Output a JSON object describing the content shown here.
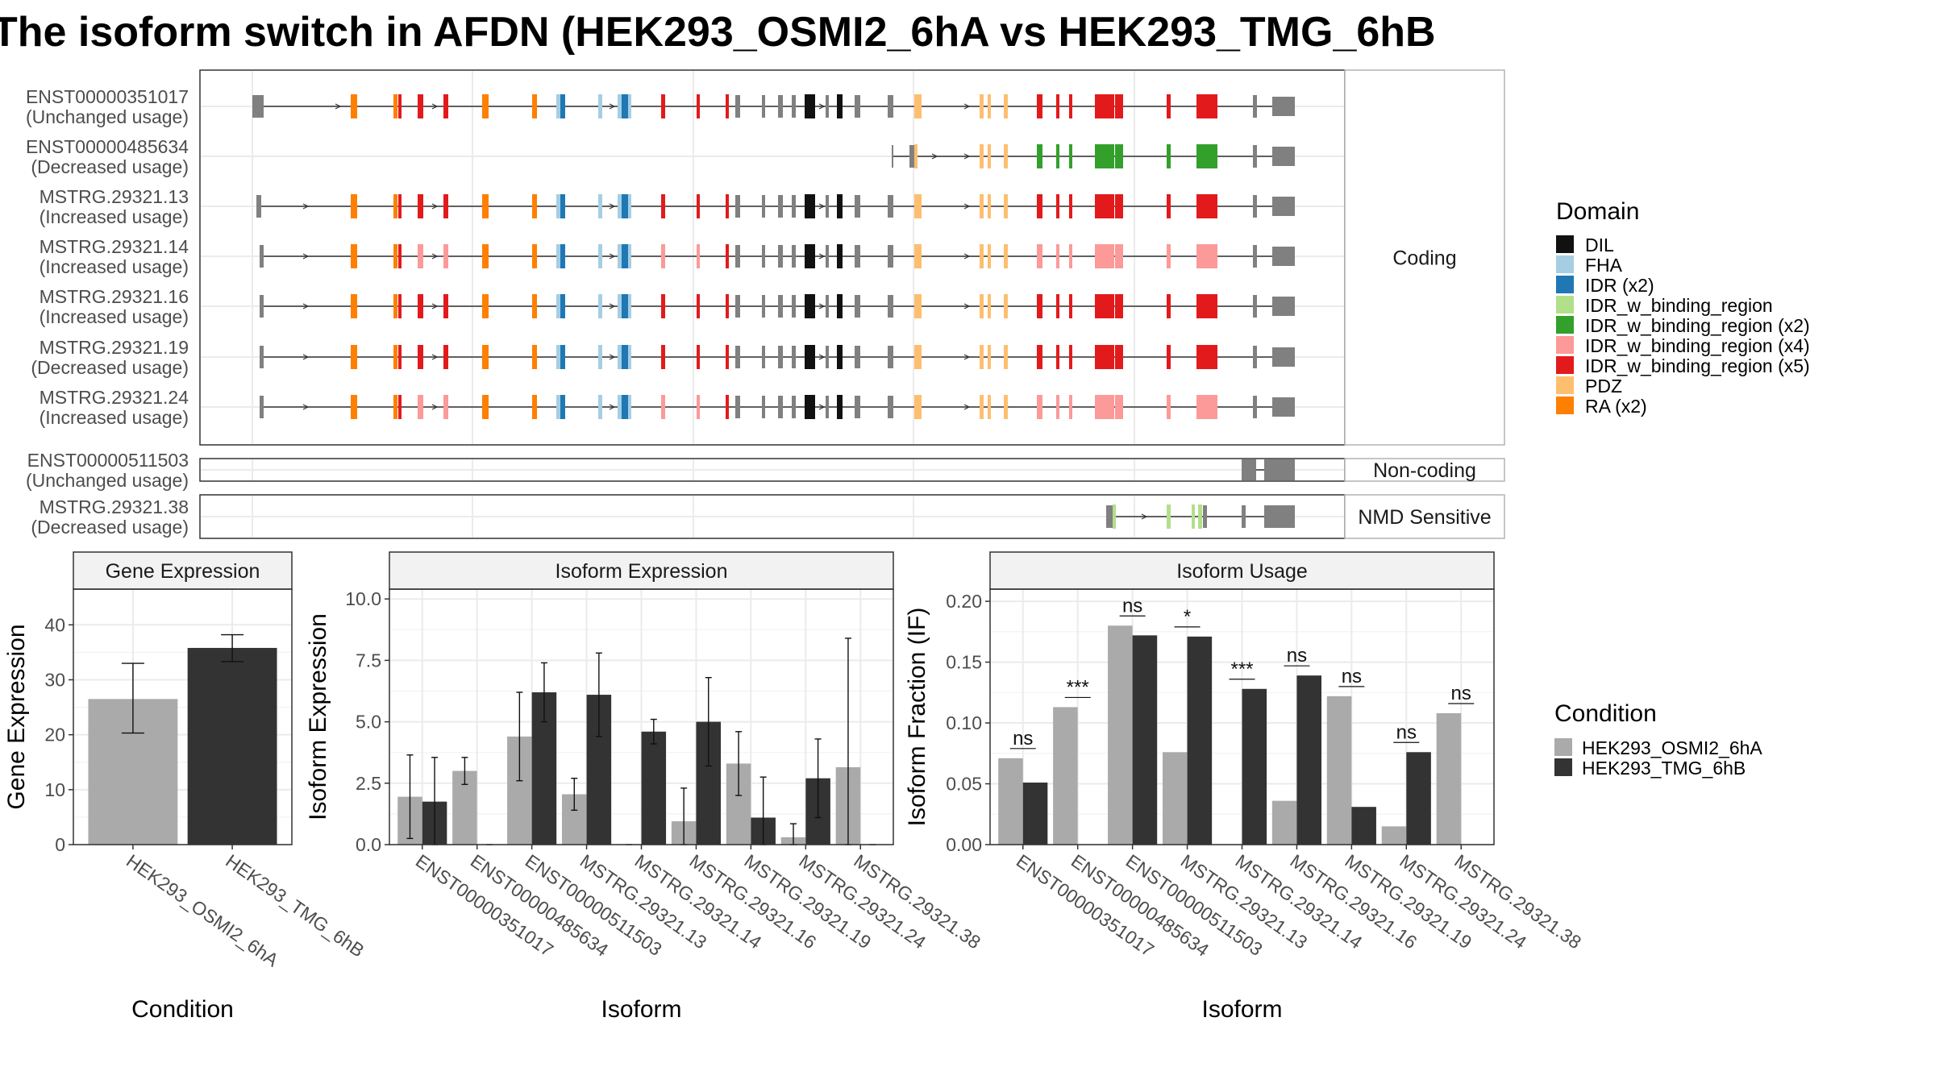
{
  "title": "The isoform switch in AFDN (HEK293_OSMI2_6hA vs HEK293_TMG_6hB",
  "colors": {
    "DIL": "#111111",
    "FHA": "#a6cee3",
    "IDR (x2)": "#1f78b4",
    "IDR_w_binding_region": "#b2df8a",
    "IDR_w_binding_region (x2)": "#33a02c",
    "IDR_w_binding_region (x4)": "#fb9a99",
    "IDR_w_binding_region (x5)": "#e31a1c",
    "PDZ": "#fdbf6f",
    "RA (x2)": "#ff7f00",
    "exon": "#808080",
    "cond_A": "#aaaaaa",
    "cond_B": "#333333"
  },
  "isoform_structure": {
    "domain_legend_title": "Domain",
    "domain_legend": [
      "DIL",
      "FHA",
      "IDR (x2)",
      "IDR_w_binding_region",
      "IDR_w_binding_region (x2)",
      "IDR_w_binding_region (x4)",
      "IDR_w_binding_region (x5)",
      "PDZ",
      "RA (x2)"
    ],
    "panels": [
      {
        "label": "Coding",
        "transcripts": [
          {
            "id": "ENST00000351017",
            "usage": "(Unchanged usage)"
          },
          {
            "id": "ENST00000485634",
            "usage": "(Decreased usage)"
          },
          {
            "id": "MSTRG.29321.13",
            "usage": "(Increased usage)"
          },
          {
            "id": "MSTRG.29321.14",
            "usage": "(Increased usage)"
          },
          {
            "id": "MSTRG.29321.16",
            "usage": "(Increased usage)"
          },
          {
            "id": "MSTRG.29321.19",
            "usage": "(Decreased usage)"
          },
          {
            "id": "MSTRG.29321.24",
            "usage": "(Increased usage)"
          }
        ]
      },
      {
        "label": "Non-coding",
        "transcripts": [
          {
            "id": "ENST00000511503",
            "usage": "(Unchanged usage)"
          }
        ]
      },
      {
        "label": "NMD Sensitive",
        "transcripts": [
          {
            "id": "MSTRG.29321.38",
            "usage": "(Decreased usage)"
          }
        ]
      }
    ]
  },
  "chart_data": [
    {
      "type": "bar",
      "title": "Gene Expression",
      "xlabel": "Condition",
      "ylabel": "Gene Expression",
      "categories": [
        "HEK293_OSMI2_6hA",
        "HEK293_TMG_6hB"
      ],
      "values": [
        26.5,
        35.8
      ],
      "error_low": [
        20.3,
        33.3
      ],
      "error_high": [
        33.0,
        38.2
      ],
      "ylim": [
        0,
        46.5
      ],
      "yticks": [
        0,
        10,
        20,
        30,
        40
      ]
    },
    {
      "type": "bar",
      "title": "Isoform Expression",
      "xlabel": "Isoform",
      "ylabel": "Isoform Expression",
      "categories": [
        "ENST00000351017",
        "ENST00000485634",
        "ENST00000511503",
        "MSTRG.29321.13",
        "MSTRG.29321.14",
        "MSTRG.29321.16",
        "MSTRG.29321.19",
        "MSTRG.29321.24",
        "MSTRG.29321.38"
      ],
      "series": [
        {
          "name": "HEK293_OSMI2_6hA",
          "values": [
            1.95,
            3.0,
            4.4,
            2.05,
            0.0,
            0.95,
            3.3,
            0.3,
            3.15
          ],
          "error_low": [
            0.25,
            2.45,
            2.6,
            1.4,
            0.0,
            0.0,
            2.0,
            0.0,
            0.0
          ],
          "error_high": [
            3.65,
            3.55,
            6.2,
            2.7,
            0.0,
            2.3,
            4.6,
            0.85,
            8.4
          ]
        },
        {
          "name": "HEK293_TMG_6hB",
          "values": [
            1.75,
            0.0,
            6.2,
            6.1,
            4.6,
            5.0,
            1.1,
            2.7,
            0.0
          ],
          "error_low": [
            0.0,
            0.0,
            5.0,
            4.4,
            4.1,
            3.2,
            0.0,
            1.1,
            0.0
          ],
          "error_high": [
            3.55,
            0.0,
            7.4,
            7.8,
            5.1,
            6.8,
            2.75,
            4.3,
            0.0
          ]
        }
      ],
      "ylim": [
        0,
        10.4
      ],
      "yticks": [
        "0.0",
        "2.5",
        "5.0",
        "7.5",
        "10.0"
      ]
    },
    {
      "type": "bar",
      "title": "Isoform Usage",
      "xlabel": "Isoform",
      "ylabel": "Isoform Fraction (IF)",
      "categories": [
        "ENST00000351017",
        "ENST00000485634",
        "ENST00000511503",
        "MSTRG.29321.13",
        "MSTRG.29321.14",
        "MSTRG.29321.16",
        "MSTRG.29321.19",
        "MSTRG.29321.24",
        "MSTRG.29321.38"
      ],
      "series": [
        {
          "name": "HEK293_OSMI2_6hA",
          "values": [
            0.071,
            0.113,
            0.18,
            0.076,
            0.0,
            0.036,
            0.122,
            0.015,
            0.108
          ]
        },
        {
          "name": "HEK293_TMG_6hB",
          "values": [
            0.051,
            0.0,
            0.172,
            0.171,
            0.128,
            0.139,
            0.031,
            0.076,
            0.0
          ]
        }
      ],
      "significance": [
        "ns",
        "***",
        "ns",
        "*",
        "***",
        "ns",
        "ns",
        "ns",
        "ns"
      ],
      "ylim": [
        0,
        0.21
      ],
      "yticks": [
        "0.00",
        "0.05",
        "0.10",
        "0.15",
        "0.20"
      ]
    }
  ],
  "condition_legend": {
    "title": "Condition",
    "entries": [
      "HEK293_OSMI2_6hA",
      "HEK293_TMG_6hB"
    ]
  }
}
